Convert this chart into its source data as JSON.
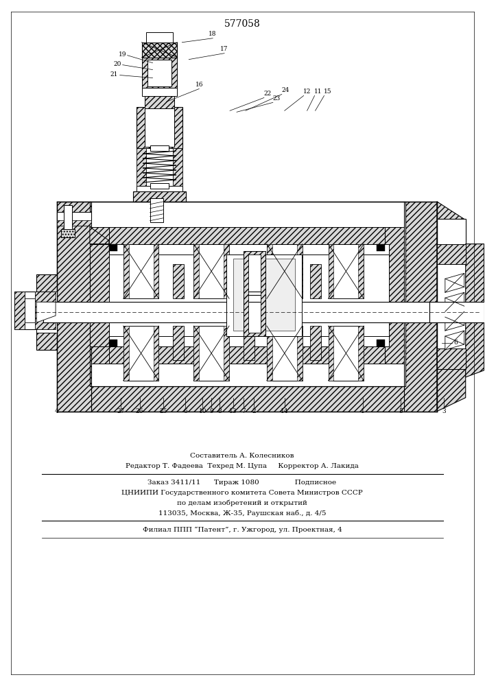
{
  "patent_number": "577058",
  "bg": "#ffffff",
  "lc": "#1a1a1a",
  "fig_w": 7.07,
  "fig_h": 10.0,
  "dpi": 100,
  "footer": [
    "Составитель А. Колесников",
    "Редактор Т. Фадеева  Техред М. Цупа     Корректор А. Лакида",
    "Заказ 3411/11      Тираж 1080                Подписное",
    "ЦНИИПИ Государственного комитета Совета Министров СССР",
    "по делам изобретений и открытий",
    "113035, Москва, Ж-35, Раушская наб., д. 4/5",
    "Филиал ППП “Патент”, г. Ужгород, ул. Проектная, 4"
  ]
}
